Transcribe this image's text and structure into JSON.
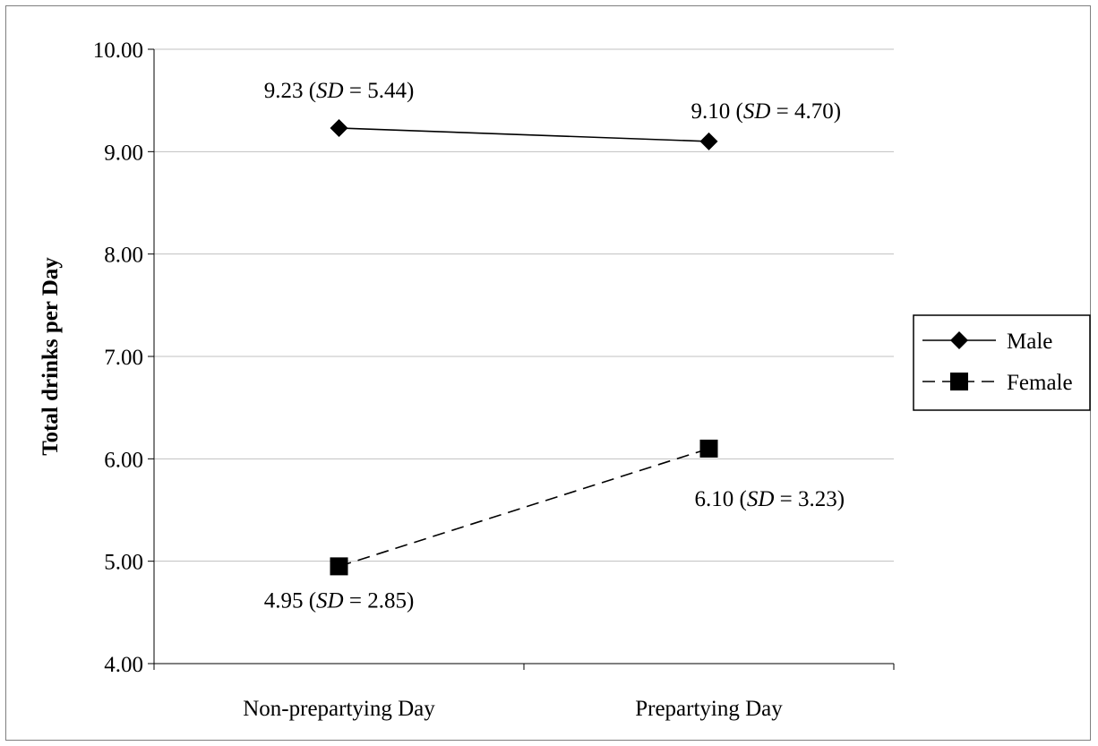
{
  "chart_data": {
    "type": "line",
    "title": "",
    "xlabel": "",
    "ylabel": "Total drinks per Day",
    "categories": [
      "Non-prepartying Day",
      "Prepartying Day"
    ],
    "ylim": [
      4.0,
      10.0
    ],
    "yticks": [
      "4.00",
      "5.00",
      "6.00",
      "7.00",
      "8.00",
      "9.00",
      "10.00"
    ],
    "grid": true,
    "legend_position": "right",
    "series": [
      {
        "name": "Male",
        "values": [
          9.23,
          9.1
        ],
        "marker": "diamond",
        "line_style": "solid",
        "labels": [
          {
            "value": "9.23",
            "sd_label": "SD",
            "sd": "5.44"
          },
          {
            "value": "9.10",
            "sd_label": "SD",
            "sd": "4.70"
          }
        ]
      },
      {
        "name": "Female",
        "values": [
          4.95,
          6.1
        ],
        "marker": "square",
        "line_style": "dashed",
        "labels": [
          {
            "value": "4.95",
            "sd_label": "SD",
            "sd": "2.85"
          },
          {
            "value": "6.10",
            "sd_label": "SD",
            "sd": "3.23"
          }
        ]
      }
    ],
    "colors": {
      "line": "#000000",
      "grid": "#c0c0c0",
      "border": "#7f7f7f"
    }
  }
}
